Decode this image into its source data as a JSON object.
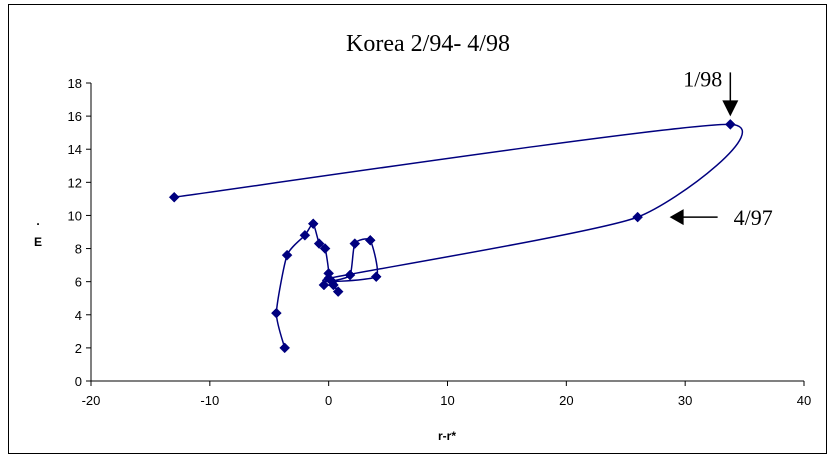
{
  "chart_data": {
    "type": "line",
    "title": "Korea 2/94- 4/98",
    "xlabel": "r-r*",
    "ylabel": "E",
    "ylabel_prefix": ".",
    "xlim": [
      -20,
      40
    ],
    "ylim": [
      0,
      18
    ],
    "x_ticks": [
      -20,
      -10,
      0,
      10,
      20,
      30,
      40
    ],
    "y_ticks": [
      0,
      2,
      4,
      6,
      8,
      10,
      12,
      14,
      16,
      18
    ],
    "grid": false,
    "legend": "none",
    "series": [
      {
        "color": "#00007f",
        "marker": "diamond",
        "points": [
          {
            "x": -3.7,
            "y": 2.0
          },
          {
            "x": -4.4,
            "y": 4.1
          },
          {
            "x": -3.5,
            "y": 7.6
          },
          {
            "x": -2.0,
            "y": 8.8
          },
          {
            "x": -1.3,
            "y": 9.5
          },
          {
            "x": -0.8,
            "y": 8.3
          },
          {
            "x": -0.3,
            "y": 8.0
          },
          {
            "x": 0.0,
            "y": 6.5
          },
          {
            "x": -0.4,
            "y": 5.8
          },
          {
            "x": 0.4,
            "y": 5.8
          },
          {
            "x": 0.8,
            "y": 5.4
          },
          {
            "x": 0.3,
            "y": 6.0
          },
          {
            "x": 1.8,
            "y": 6.4
          },
          {
            "x": 2.2,
            "y": 8.3
          },
          {
            "x": 3.5,
            "y": 8.5
          },
          {
            "x": 4.0,
            "y": 6.3
          },
          {
            "x": 0.0,
            "y": 6.2
          },
          {
            "x": 26.0,
            "y": 9.9
          },
          {
            "x": 33.8,
            "y": 15.5
          },
          {
            "x": -13.0,
            "y": 11.1
          }
        ]
      }
    ],
    "annotations": [
      {
        "text": "1/98",
        "target": {
          "x": 33.8,
          "y": 15.5
        },
        "arrow": "down"
      },
      {
        "text": "4/97",
        "target": {
          "x": 26.0,
          "y": 9.9
        },
        "arrow": "left"
      }
    ]
  }
}
